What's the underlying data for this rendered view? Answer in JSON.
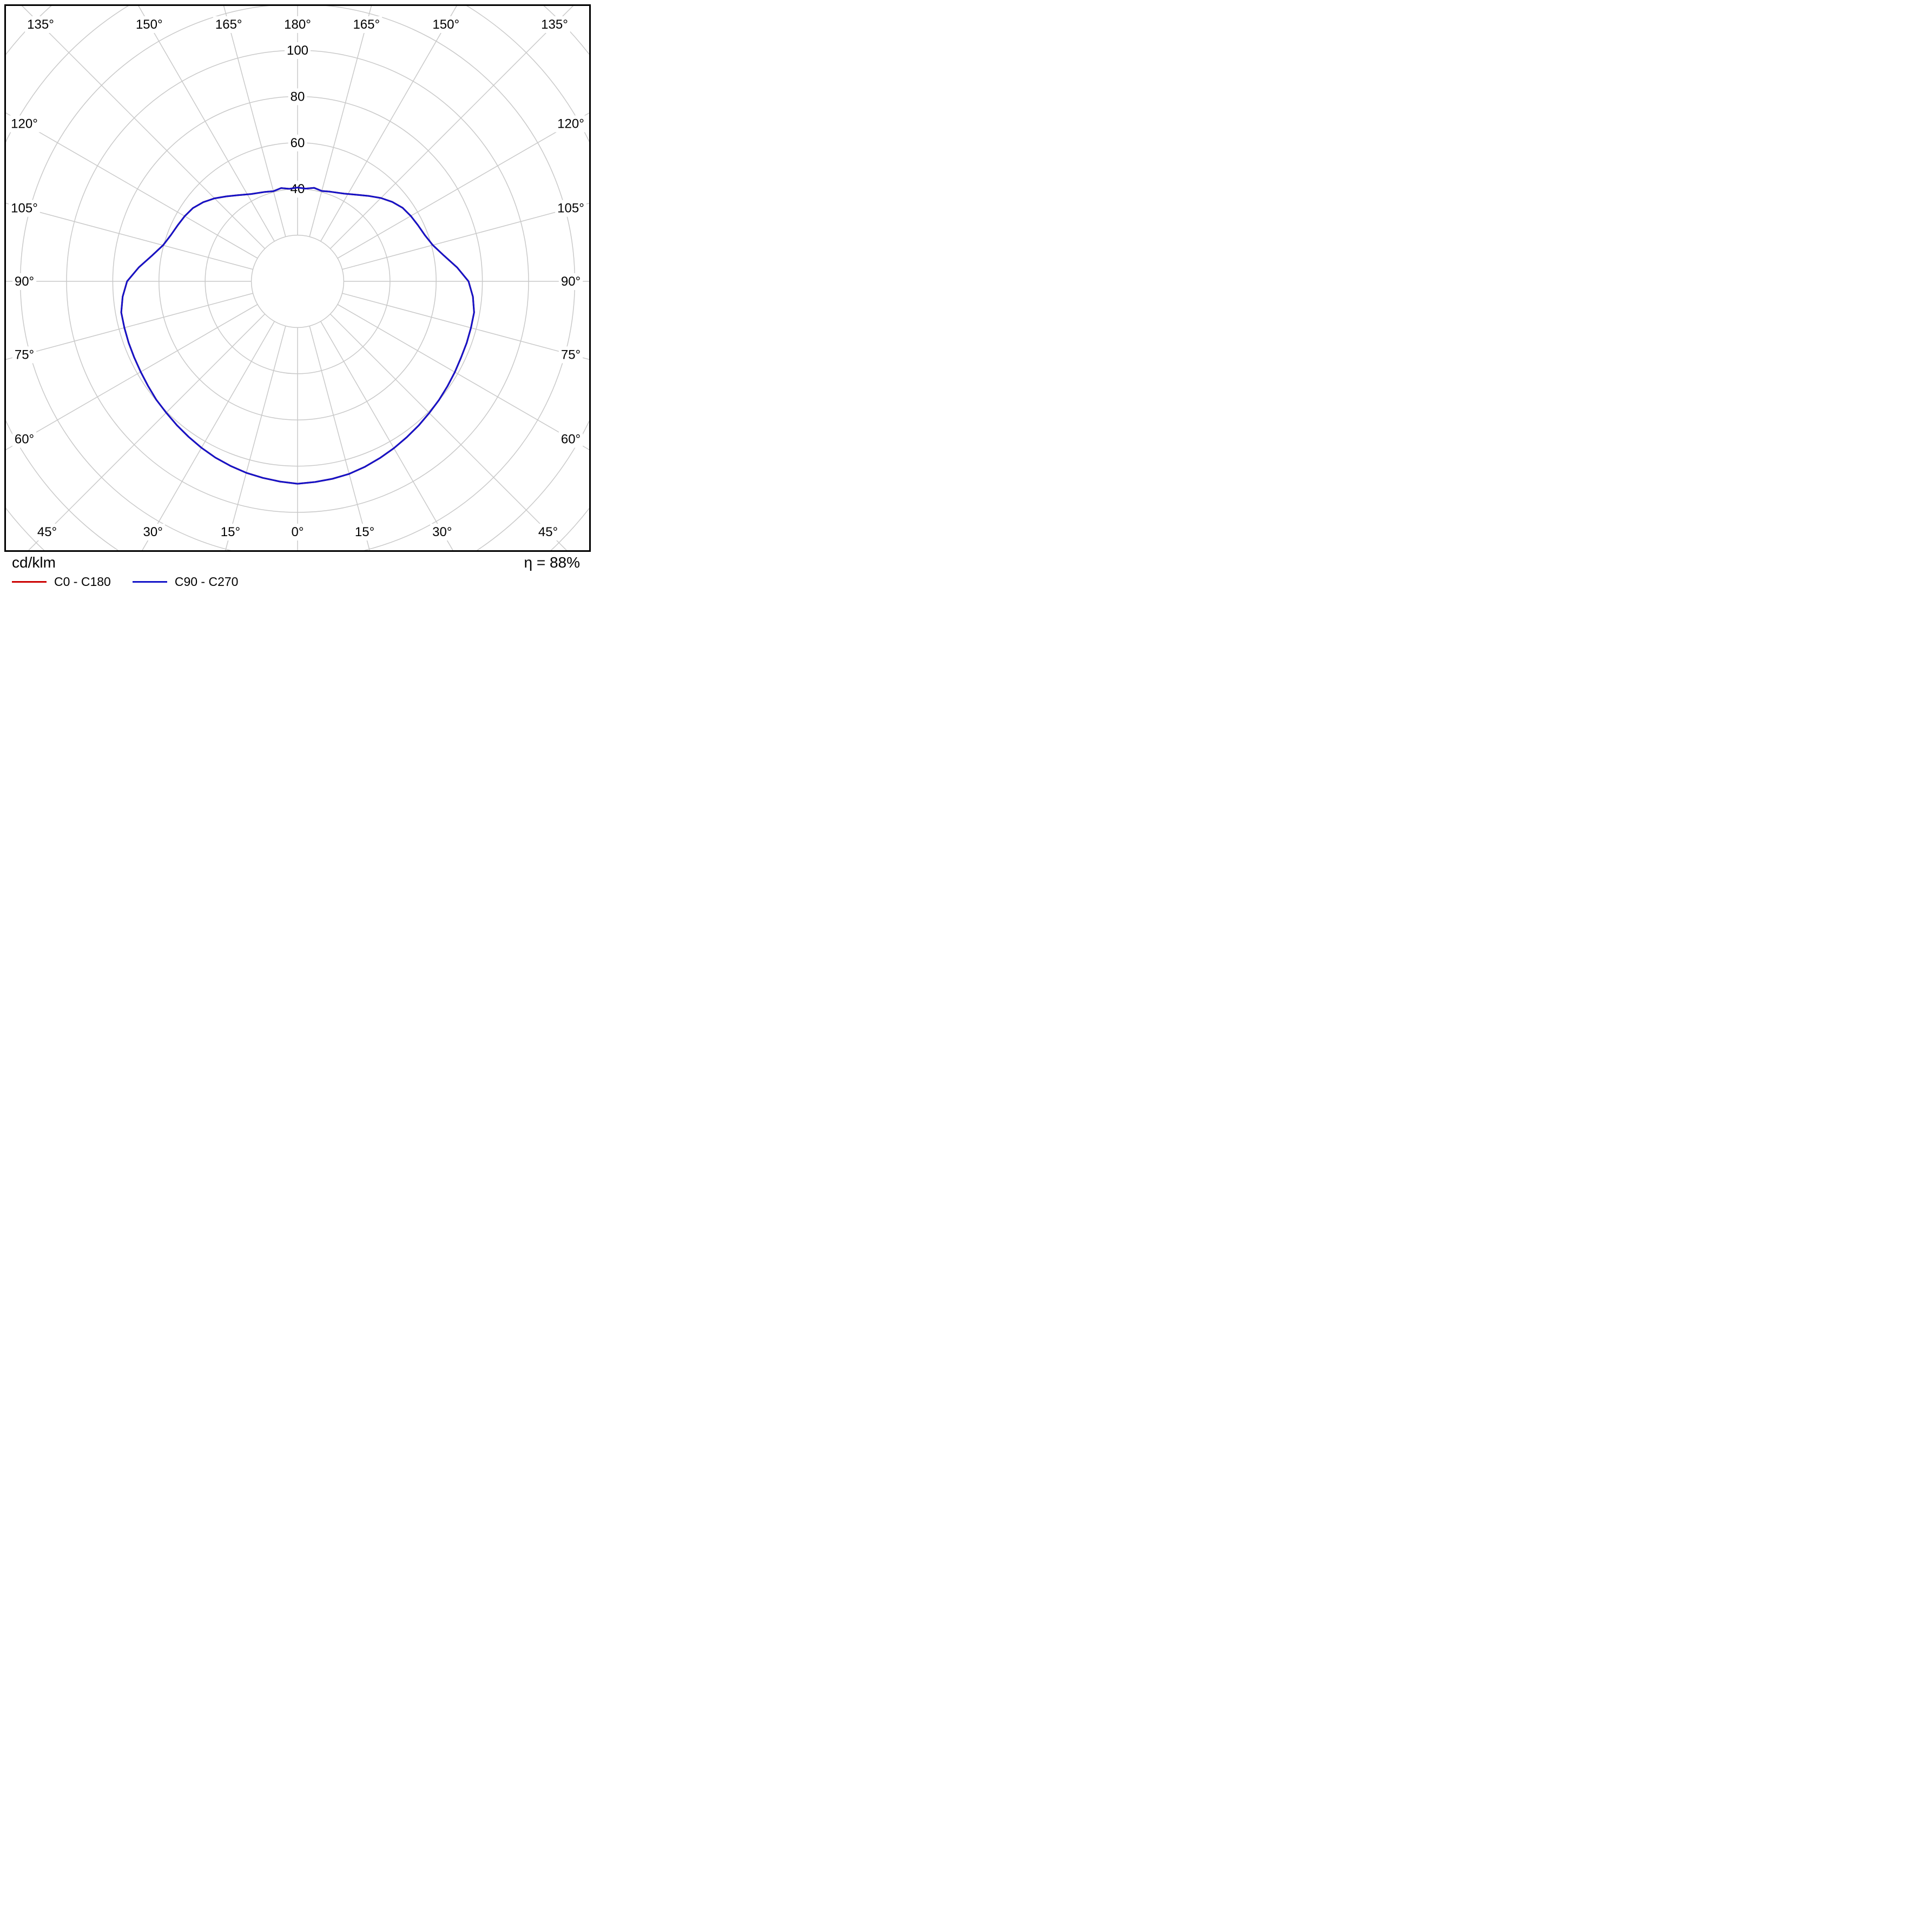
{
  "chart_data": {
    "type": "line",
    "coordinate_system": "polar",
    "description": "Luminous intensity distribution curve (photometric polar diagram)",
    "unit": "cd/klm",
    "efficiency": "η = 88%",
    "grid_color": "#c9c9c9",
    "radial_axis": {
      "ticks": [
        "40",
        "60",
        "80",
        "100"
      ],
      "tick_values": [
        40,
        60,
        80,
        100
      ],
      "ring_step": 20,
      "max_ring": 160,
      "spoke_step_deg": 15,
      "range": [
        0,
        100
      ]
    },
    "angle_labels": [
      {
        "gamma": -135,
        "text": "135°"
      },
      {
        "gamma": -150,
        "text": "150°"
      },
      {
        "gamma": -165,
        "text": "165°"
      },
      {
        "gamma": 180,
        "text": "180°"
      },
      {
        "gamma": 165,
        "text": "165°"
      },
      {
        "gamma": 150,
        "text": "150°"
      },
      {
        "gamma": 135,
        "text": "135°"
      },
      {
        "gamma": -120,
        "text": "120°"
      },
      {
        "gamma": 120,
        "text": "120°"
      },
      {
        "gamma": -105,
        "text": "105°"
      },
      {
        "gamma": 105,
        "text": "105°"
      },
      {
        "gamma": -90,
        "text": "90°"
      },
      {
        "gamma": 90,
        "text": "90°"
      },
      {
        "gamma": -75,
        "text": "75°"
      },
      {
        "gamma": 75,
        "text": "75°"
      },
      {
        "gamma": -60,
        "text": "60°"
      },
      {
        "gamma": 60,
        "text": "60°"
      },
      {
        "gamma": -45,
        "text": "45°"
      },
      {
        "gamma": 45,
        "text": "45°"
      },
      {
        "gamma": -30,
        "text": "30°"
      },
      {
        "gamma": 30,
        "text": "30°"
      },
      {
        "gamma": -15,
        "text": "15°"
      },
      {
        "gamma": 15,
        "text": "15°"
      },
      {
        "gamma": 0,
        "text": "0°"
      }
    ],
    "series": [
      {
        "name": "C0 - C180",
        "color": "#cc0000",
        "points": [
          [
            -180,
            40.6
          ],
          [
            -175,
            40.2
          ],
          [
            -170,
            41.0
          ],
          [
            -165,
            40.4
          ],
          [
            -160,
            41.2
          ],
          [
            -152,
            42.8
          ],
          [
            -145,
            45.5
          ],
          [
            -140,
            48.0
          ],
          [
            -135,
            50.8
          ],
          [
            -130,
            53.3
          ],
          [
            -125,
            55.3
          ],
          [
            -120,
            56.4
          ],
          [
            -115,
            57.3
          ],
          [
            -110,
            58.4
          ],
          [
            -105,
            60.3
          ],
          [
            -100,
            64.0
          ],
          [
            -95,
            69.0
          ],
          [
            -90,
            73.8
          ],
          [
            -85,
            76.0
          ],
          [
            -80,
            77.5
          ],
          [
            -75,
            77.6
          ],
          [
            -70,
            77.8
          ],
          [
            -65,
            78.0
          ],
          [
            -60,
            78.4
          ],
          [
            -55,
            79.0
          ],
          [
            -50,
            79.8
          ],
          [
            -45,
            80.4
          ],
          [
            -40,
            81.3
          ],
          [
            -35,
            82.2
          ],
          [
            -30,
            83.2
          ],
          [
            -25,
            84.2
          ],
          [
            -20,
            85.0
          ],
          [
            -15,
            85.8
          ],
          [
            -10,
            86.4
          ],
          [
            -5,
            87.0
          ],
          [
            0,
            87.6
          ],
          [
            5,
            87.2
          ],
          [
            10,
            86.8
          ],
          [
            15,
            86.3
          ],
          [
            20,
            85.4
          ],
          [
            25,
            84.4
          ],
          [
            30,
            83.4
          ],
          [
            35,
            82.4
          ],
          [
            40,
            81.5
          ],
          [
            45,
            80.6
          ],
          [
            50,
            79.9
          ],
          [
            55,
            79.2
          ],
          [
            60,
            78.6
          ],
          [
            65,
            78.1
          ],
          [
            70,
            77.9
          ],
          [
            75,
            77.7
          ],
          [
            80,
            77.6
          ],
          [
            85,
            76.2
          ],
          [
            90,
            74.0
          ],
          [
            95,
            69.3
          ],
          [
            100,
            64.3
          ],
          [
            105,
            60.6
          ],
          [
            110,
            58.6
          ],
          [
            115,
            57.5
          ],
          [
            120,
            56.6
          ],
          [
            125,
            55.5
          ],
          [
            130,
            53.5
          ],
          [
            135,
            51.0
          ],
          [
            140,
            48.2
          ],
          [
            145,
            45.7
          ],
          [
            152,
            43.0
          ],
          [
            160,
            41.3
          ],
          [
            165,
            40.5
          ],
          [
            170,
            41.1
          ],
          [
            175,
            40.3
          ],
          [
            180,
            40.6
          ]
        ]
      },
      {
        "name": "C90 - C270",
        "color": "#1414c8",
        "points": [
          [
            -180,
            40.6
          ],
          [
            -175,
            40.2
          ],
          [
            -170,
            41.0
          ],
          [
            -165,
            40.4
          ],
          [
            -160,
            41.2
          ],
          [
            -152,
            42.8
          ],
          [
            -145,
            45.5
          ],
          [
            -140,
            48.0
          ],
          [
            -135,
            50.8
          ],
          [
            -130,
            53.3
          ],
          [
            -125,
            55.3
          ],
          [
            -120,
            56.4
          ],
          [
            -115,
            57.3
          ],
          [
            -110,
            58.4
          ],
          [
            -105,
            60.3
          ],
          [
            -100,
            64.0
          ],
          [
            -95,
            69.0
          ],
          [
            -90,
            73.8
          ],
          [
            -85,
            76.0
          ],
          [
            -80,
            77.5
          ],
          [
            -75,
            77.6
          ],
          [
            -70,
            77.8
          ],
          [
            -65,
            78.0
          ],
          [
            -60,
            78.4
          ],
          [
            -55,
            79.0
          ],
          [
            -50,
            79.8
          ],
          [
            -45,
            80.4
          ],
          [
            -40,
            81.3
          ],
          [
            -35,
            82.2
          ],
          [
            -30,
            83.2
          ],
          [
            -25,
            84.2
          ],
          [
            -20,
            85.0
          ],
          [
            -15,
            85.8
          ],
          [
            -10,
            86.4
          ],
          [
            -5,
            87.0
          ],
          [
            0,
            87.6
          ],
          [
            5,
            87.2
          ],
          [
            10,
            86.8
          ],
          [
            15,
            86.3
          ],
          [
            20,
            85.4
          ],
          [
            25,
            84.4
          ],
          [
            30,
            83.4
          ],
          [
            35,
            82.4
          ],
          [
            40,
            81.5
          ],
          [
            45,
            80.6
          ],
          [
            50,
            79.9
          ],
          [
            55,
            79.2
          ],
          [
            60,
            78.6
          ],
          [
            65,
            78.1
          ],
          [
            70,
            77.9
          ],
          [
            75,
            77.7
          ],
          [
            80,
            77.6
          ],
          [
            85,
            76.2
          ],
          [
            90,
            74.0
          ],
          [
            95,
            69.3
          ],
          [
            100,
            64.3
          ],
          [
            105,
            60.6
          ],
          [
            110,
            58.6
          ],
          [
            115,
            57.5
          ],
          [
            120,
            56.6
          ],
          [
            125,
            55.5
          ],
          [
            130,
            53.5
          ],
          [
            135,
            51.0
          ],
          [
            140,
            48.2
          ],
          [
            145,
            45.7
          ],
          [
            152,
            43.0
          ],
          [
            160,
            41.3
          ],
          [
            165,
            40.5
          ],
          [
            170,
            41.1
          ],
          [
            175,
            40.3
          ],
          [
            180,
            40.6
          ]
        ]
      }
    ]
  }
}
